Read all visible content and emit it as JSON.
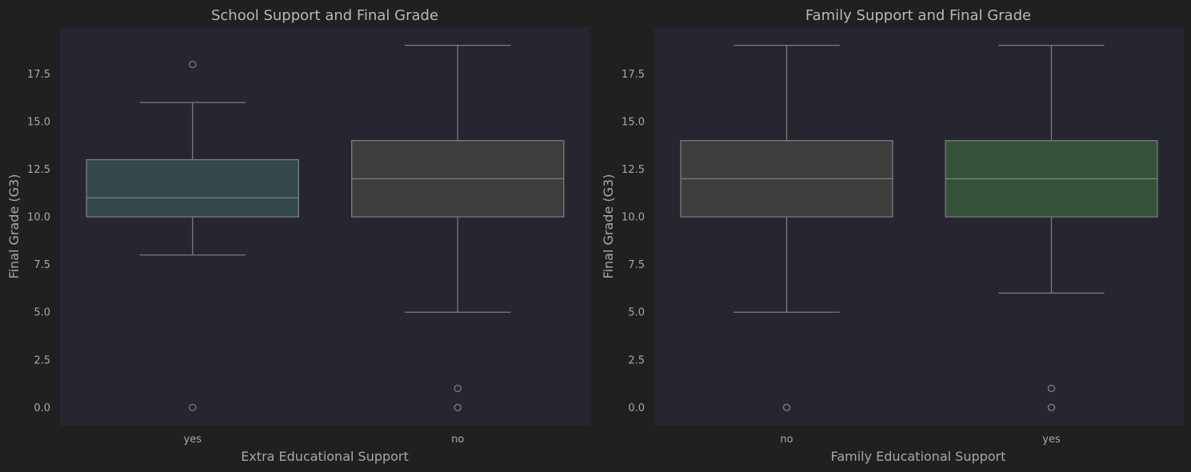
{
  "chart_data": [
    {
      "type": "box",
      "title": "School Support and Final Grade",
      "xlabel": "Extra Educational Support",
      "ylabel": "Final Grade (G3)",
      "ylim": [
        -0.95,
        19.95
      ],
      "yticks": [
        "0.0",
        "2.5",
        "5.0",
        "7.5",
        "10.0",
        "12.5",
        "15.0",
        "17.5"
      ],
      "ytick_values": [
        0,
        2.5,
        5,
        7.5,
        10,
        12.5,
        15,
        17.5
      ],
      "grid": false,
      "categories": [
        "yes",
        "no"
      ],
      "boxes": [
        {
          "category": "yes",
          "whisker_low": 8,
          "q1": 10,
          "median": 11,
          "q3": 13,
          "whisker_high": 16,
          "outliers": [
            18,
            0
          ],
          "color": "#34494d"
        },
        {
          "category": "no",
          "whisker_low": 5,
          "q1": 10,
          "median": 12,
          "q3": 14,
          "whisker_high": 19,
          "outliers": [
            1,
            0,
            0
          ],
          "color": "#3d3d3d"
        }
      ]
    },
    {
      "type": "box",
      "title": "Family Support and Final Grade",
      "xlabel": "Family Educational Support",
      "ylabel": "Final Grade (G3)",
      "ylim": [
        -0.95,
        19.95
      ],
      "yticks": [
        "0.0",
        "2.5",
        "5.0",
        "7.5",
        "10.0",
        "12.5",
        "15.0",
        "17.5"
      ],
      "ytick_values": [
        0,
        2.5,
        5,
        7.5,
        10,
        12.5,
        15,
        17.5
      ],
      "grid": false,
      "categories": [
        "no",
        "yes"
      ],
      "boxes": [
        {
          "category": "no",
          "whisker_low": 5,
          "q1": 10,
          "median": 12,
          "q3": 14,
          "whisker_high": 19,
          "outliers": [
            0,
            0
          ],
          "color": "#3d3d3d"
        },
        {
          "category": "yes",
          "whisker_low": 6,
          "q1": 10,
          "median": 12,
          "q3": 14,
          "whisker_high": 19,
          "outliers": [
            1,
            0,
            0
          ],
          "color": "#35513a"
        }
      ]
    }
  ],
  "colors": {
    "page_background": "#202020",
    "plot_background": "#252630",
    "line": "#7c7c7c",
    "text": "#a8a8a8"
  }
}
